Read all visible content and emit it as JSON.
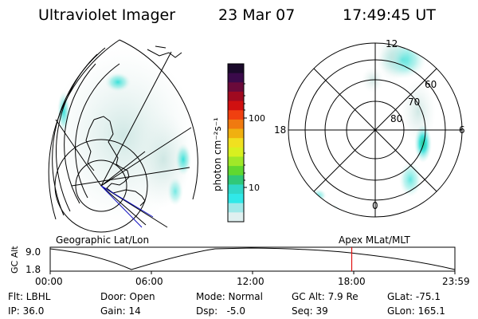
{
  "header": {
    "title": "Ultraviolet Imager",
    "date": "23 Mar 07",
    "time": "17:49:45 UT"
  },
  "colorbar": {
    "unit_label": "photon cm⁻²s⁻¹",
    "ticks": [
      "100",
      "10"
    ],
    "colors": [
      "#1a0a2a",
      "#3a0a4a",
      "#6a0a3a",
      "#a00a20",
      "#d01010",
      "#f04010",
      "#f07a10",
      "#f0b010",
      "#f0e020",
      "#d8f020",
      "#a0e828",
      "#60d830",
      "#30c878",
      "#30d8c8",
      "#30e8e8",
      "#a0e8e8",
      "#e0f0f0"
    ]
  },
  "left_panel": {
    "label": "Geographic Lat/Lon"
  },
  "right_panel": {
    "label": "Apex MLat/MLT",
    "mlt_labels": [
      "12",
      "18",
      "6",
      "0"
    ],
    "lat_labels": [
      "60",
      "70",
      "80"
    ]
  },
  "altitude_plot": {
    "ylabel": "GC Alt",
    "y_ticks": [
      "9.0",
      "1.8"
    ],
    "x_ticks": [
      "00:00",
      "06:00",
      "12:00",
      "18:00",
      "23:59"
    ],
    "current_time_fraction": 0.745
  },
  "info": {
    "flt": "Flt: LBHL",
    "ip": "IP: 36.0",
    "door": "Door: Open",
    "gain": "Gain: 14",
    "mode": "Mode: Normal",
    "dsp": "Dsp:   -5.0",
    "gc_alt": "GC Alt: 7.9 Re",
    "seq": "Seq: 39",
    "glat": "GLat: -75.1",
    "glon": "GLon: 165.1"
  }
}
